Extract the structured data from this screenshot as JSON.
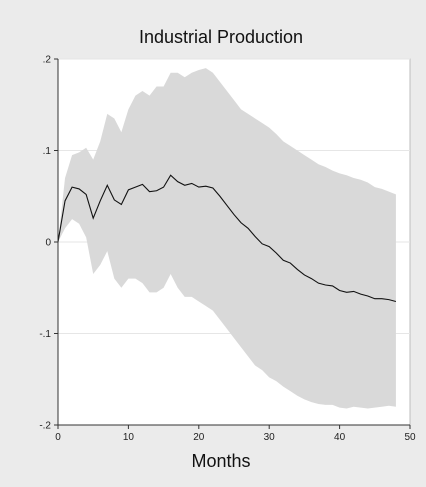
{
  "chart_data": {
    "type": "line",
    "title": "Industrial Production",
    "xlabel": "Months",
    "ylabel": "",
    "xlim": [
      0,
      50
    ],
    "ylim": [
      -0.2,
      0.2
    ],
    "x_ticks": [
      0,
      10,
      20,
      30,
      40,
      50
    ],
    "x_tick_labels": [
      "0",
      "10",
      "20",
      "30",
      "40",
      "50"
    ],
    "y_ticks": [
      0.2,
      0.1,
      0,
      -0.1,
      -0.2
    ],
    "y_tick_labels": [
      ".2",
      ".1",
      "0",
      "-.1",
      "-.2"
    ],
    "grid": "horizontal",
    "legend": "none",
    "colors": {
      "background": "#ebebeb",
      "plot_area": "#ffffff",
      "band": "#d9d9d9",
      "line": "#111111",
      "grid": "#e6e6e6"
    },
    "x": [
      0,
      1,
      2,
      3,
      4,
      5,
      6,
      7,
      8,
      9,
      10,
      11,
      12,
      13,
      14,
      15,
      16,
      17,
      18,
      19,
      20,
      21,
      22,
      23,
      24,
      25,
      26,
      27,
      28,
      29,
      30,
      31,
      32,
      33,
      34,
      35,
      36,
      37,
      38,
      39,
      40,
      41,
      42,
      43,
      44,
      45,
      46,
      47,
      48
    ],
    "series": [
      {
        "type": "line",
        "values": [
          0.0,
          0.045,
          0.06,
          0.058,
          0.052,
          0.026,
          0.045,
          0.062,
          0.046,
          0.041,
          0.057,
          0.06,
          0.063,
          0.055,
          0.056,
          0.06,
          0.073,
          0.066,
          0.062,
          0.064,
          0.06,
          0.061,
          0.059,
          0.05,
          0.04,
          0.03,
          0.021,
          0.015,
          0.006,
          -0.002,
          -0.005,
          -0.012,
          -0.02,
          -0.023,
          -0.03,
          -0.036,
          -0.04,
          -0.045,
          -0.047,
          -0.048,
          -0.053,
          -0.055,
          -0.054,
          -0.057,
          -0.059,
          -0.062,
          -0.062,
          -0.063,
          -0.065
        ]
      },
      {
        "type": "band",
        "upper": [
          0.0,
          0.07,
          0.095,
          0.098,
          0.103,
          0.09,
          0.11,
          0.14,
          0.135,
          0.12,
          0.145,
          0.16,
          0.165,
          0.16,
          0.17,
          0.17,
          0.185,
          0.185,
          0.18,
          0.185,
          0.188,
          0.19,
          0.185,
          0.175,
          0.165,
          0.155,
          0.145,
          0.14,
          0.135,
          0.13,
          0.125,
          0.118,
          0.11,
          0.105,
          0.1,
          0.095,
          0.09,
          0.085,
          0.082,
          0.078,
          0.075,
          0.073,
          0.07,
          0.068,
          0.065,
          0.06,
          0.058,
          0.055,
          0.052
        ],
        "lower": [
          0.0,
          0.015,
          0.025,
          0.02,
          0.005,
          -0.035,
          -0.025,
          -0.01,
          -0.04,
          -0.05,
          -0.04,
          -0.04,
          -0.045,
          -0.055,
          -0.055,
          -0.05,
          -0.035,
          -0.05,
          -0.06,
          -0.06,
          -0.065,
          -0.07,
          -0.075,
          -0.085,
          -0.095,
          -0.105,
          -0.115,
          -0.125,
          -0.135,
          -0.14,
          -0.148,
          -0.152,
          -0.158,
          -0.163,
          -0.168,
          -0.172,
          -0.175,
          -0.177,
          -0.178,
          -0.178,
          -0.181,
          -0.182,
          -0.18,
          -0.181,
          -0.182,
          -0.181,
          -0.18,
          -0.179,
          -0.18
        ]
      }
    ]
  }
}
